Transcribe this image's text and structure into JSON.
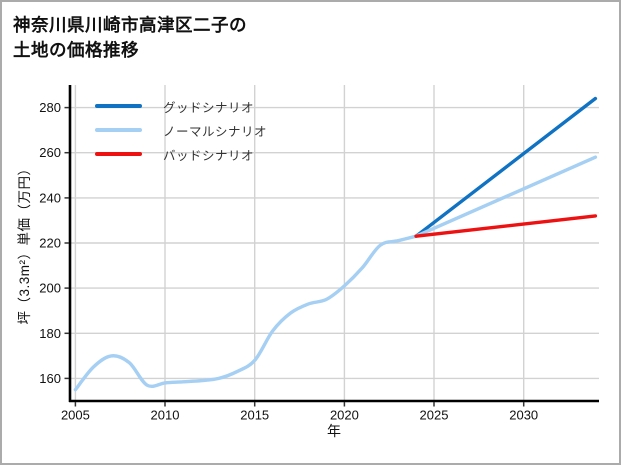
{
  "figure": {
    "background": "#ffffff",
    "border_color": "#ababab"
  },
  "chart_data": {
    "type": "line",
    "title": "神奈川県川崎市高津区二子の土地の価格推移",
    "title_lines": [
      "神奈川県川崎市高津区二子の",
      "土地の価格推移"
    ],
    "xlabel": "年",
    "ylabel": "坪（3.3m²）単価（万円）",
    "x_ticks": [
      2005,
      2010,
      2015,
      2020,
      2025,
      2030
    ],
    "y_ticks": [
      160,
      180,
      200,
      220,
      240,
      260,
      280
    ],
    "xlim": [
      2004.7,
      2034.2
    ],
    "ylim": [
      150,
      290
    ],
    "grid": true,
    "grid_color": "#d2d2d2",
    "axis_color": "#000000",
    "legend_position": "upper-left",
    "series": [
      {
        "id": "historical",
        "name": "",
        "color": "#a5cff3",
        "smooth": true,
        "x": [
          2005,
          2006,
          2007,
          2008,
          2009,
          2010,
          2011,
          2012,
          2013,
          2014,
          2015,
          2016,
          2017,
          2018,
          2019,
          2020,
          2021,
          2022,
          2023,
          2024
        ],
        "y": [
          155,
          165,
          170,
          167,
          157,
          158,
          158.5,
          159,
          160,
          163,
          168,
          181,
          189,
          193,
          195,
          201,
          209,
          219,
          221,
          223
        ]
      },
      {
        "id": "good",
        "name": "グッドシナリオ",
        "color": "#0f72c2",
        "smooth": false,
        "x": [
          2024,
          2034
        ],
        "y": [
          223,
          284
        ]
      },
      {
        "id": "normal",
        "name": "ノーマルシナリオ",
        "color": "#a5cff3",
        "smooth": false,
        "x": [
          2024,
          2034
        ],
        "y": [
          223,
          258
        ]
      },
      {
        "id": "bad",
        "name": "バッドシナリオ",
        "color": "#ee1111",
        "smooth": false,
        "x": [
          2024,
          2034
        ],
        "y": [
          223,
          232
        ]
      }
    ]
  }
}
